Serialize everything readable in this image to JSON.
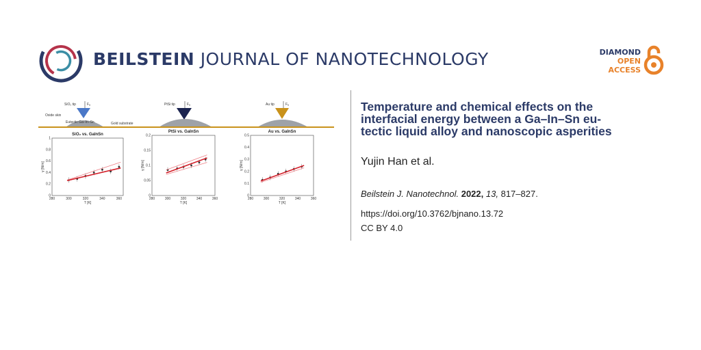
{
  "header": {
    "journal_bold": "BEILSTEIN",
    "journal_rest": "JOURNAL OF NANOTECHNOLOGY",
    "oa_line1": "DIAMOND",
    "oa_line2": "OPEN",
    "oa_line3": "ACCESS",
    "colors": {
      "navy": "#2b3a67",
      "orange": "#e8822a",
      "gold": "#c9921b"
    }
  },
  "article": {
    "title": "Temperature and chemical effects on the interfacial energy between a Ga–In–Sn eutectic liquid alloy and nanoscopic asperities",
    "title_lines": [
      "Temperature and chemical effects on the",
      "interfacial energy between a Ga–In–Sn eu-",
      "tectic liquid alloy and nanoscopic asperities"
    ],
    "authors": "Yujin Han et al.",
    "journal_abbrev": "Beilstein J. Nanotechnol.",
    "year": "2022,",
    "volume": "13,",
    "pages": "817–827.",
    "doi": "https://doi.org/10.3762/bjnano.13.72",
    "license": "CC BY 4.0"
  },
  "graphical_abstract": {
    "panel1": {
      "tip_label": "SiO₂ tip",
      "force_label": "Fₐ",
      "oxide_label": "Oxide skin",
      "alloy_label": "Eutectic Ga–In–Sn",
      "substrate_label": "Gold substrate",
      "tip_color": "#4a78c8"
    },
    "panel2": {
      "tip_label": "PtSi tip",
      "force_label": "Fₐ",
      "tip_color": "#1b2450"
    },
    "panel3": {
      "tip_label": "Au tip",
      "force_label": "Fₐ",
      "tip_color": "#c9921b"
    }
  },
  "chart_data": [
    {
      "type": "scatter",
      "title": "SiO₂ vs. GaInSn",
      "xlabel": "T [K]",
      "ylabel": "γ [N/m]",
      "xlim": [
        280,
        365
      ],
      "ylim": [
        0,
        1
      ],
      "xticks": [
        "280",
        "300",
        "320",
        "340",
        "360"
      ],
      "yticks": [
        "0",
        "0.2",
        "0.4",
        "0.6",
        "0.8",
        "1"
      ],
      "series": [
        {
          "name": "points",
          "x": [
            300,
            310,
            320,
            330,
            340,
            350,
            360
          ],
          "y": [
            0.27,
            0.29,
            0.34,
            0.4,
            0.45,
            0.42,
            0.5
          ]
        },
        {
          "name": "fit",
          "x": [
            298,
            362
          ],
          "y": [
            0.26,
            0.48
          ]
        },
        {
          "name": "fit-upper",
          "x": [
            298,
            362
          ],
          "y": [
            0.27,
            0.58
          ]
        }
      ]
    },
    {
      "type": "scatter",
      "title": "PtSi vs. GaInSn",
      "xlabel": "T [K]",
      "ylabel": "γ [N/m]",
      "xlim": [
        280,
        360
      ],
      "ylim": [
        0,
        0.2
      ],
      "xticks": [
        "280",
        "300",
        "320",
        "340",
        "360"
      ],
      "yticks": [
        "0",
        "0.05",
        "0.1",
        "0.15",
        "0.2"
      ],
      "series": [
        {
          "name": "points",
          "x": [
            300,
            312,
            320,
            330,
            340,
            348
          ],
          "y": [
            0.085,
            0.09,
            0.095,
            0.1,
            0.11,
            0.12
          ]
        },
        {
          "name": "fit",
          "x": [
            298,
            350
          ],
          "y": [
            0.075,
            0.125
          ]
        },
        {
          "name": "fit-upper",
          "x": [
            298,
            350
          ],
          "y": [
            0.085,
            0.135
          ]
        },
        {
          "name": "fit-lower",
          "x": [
            298,
            350
          ],
          "y": [
            0.07,
            0.11
          ]
        }
      ]
    },
    {
      "type": "scatter",
      "title": "Au vs. GaInSn",
      "xlabel": "T [K]",
      "ylabel": "γ [N/m]",
      "xlim": [
        280,
        360
      ],
      "ylim": [
        0,
        0.5
      ],
      "xticks": [
        "280",
        "300",
        "320",
        "340",
        "360"
      ],
      "yticks": [
        "0",
        "0.1",
        "0.2",
        "0.3",
        "0.4",
        "0.5"
      ],
      "series": [
        {
          "name": "points",
          "x": [
            295,
            305,
            315,
            325,
            335,
            345
          ],
          "y": [
            0.13,
            0.15,
            0.18,
            0.2,
            0.22,
            0.24
          ]
        },
        {
          "name": "fit",
          "x": [
            293,
            348
          ],
          "y": [
            0.12,
            0.25
          ]
        },
        {
          "name": "fit-lower",
          "x": [
            293,
            348
          ],
          "y": [
            0.11,
            0.23
          ]
        }
      ]
    }
  ]
}
